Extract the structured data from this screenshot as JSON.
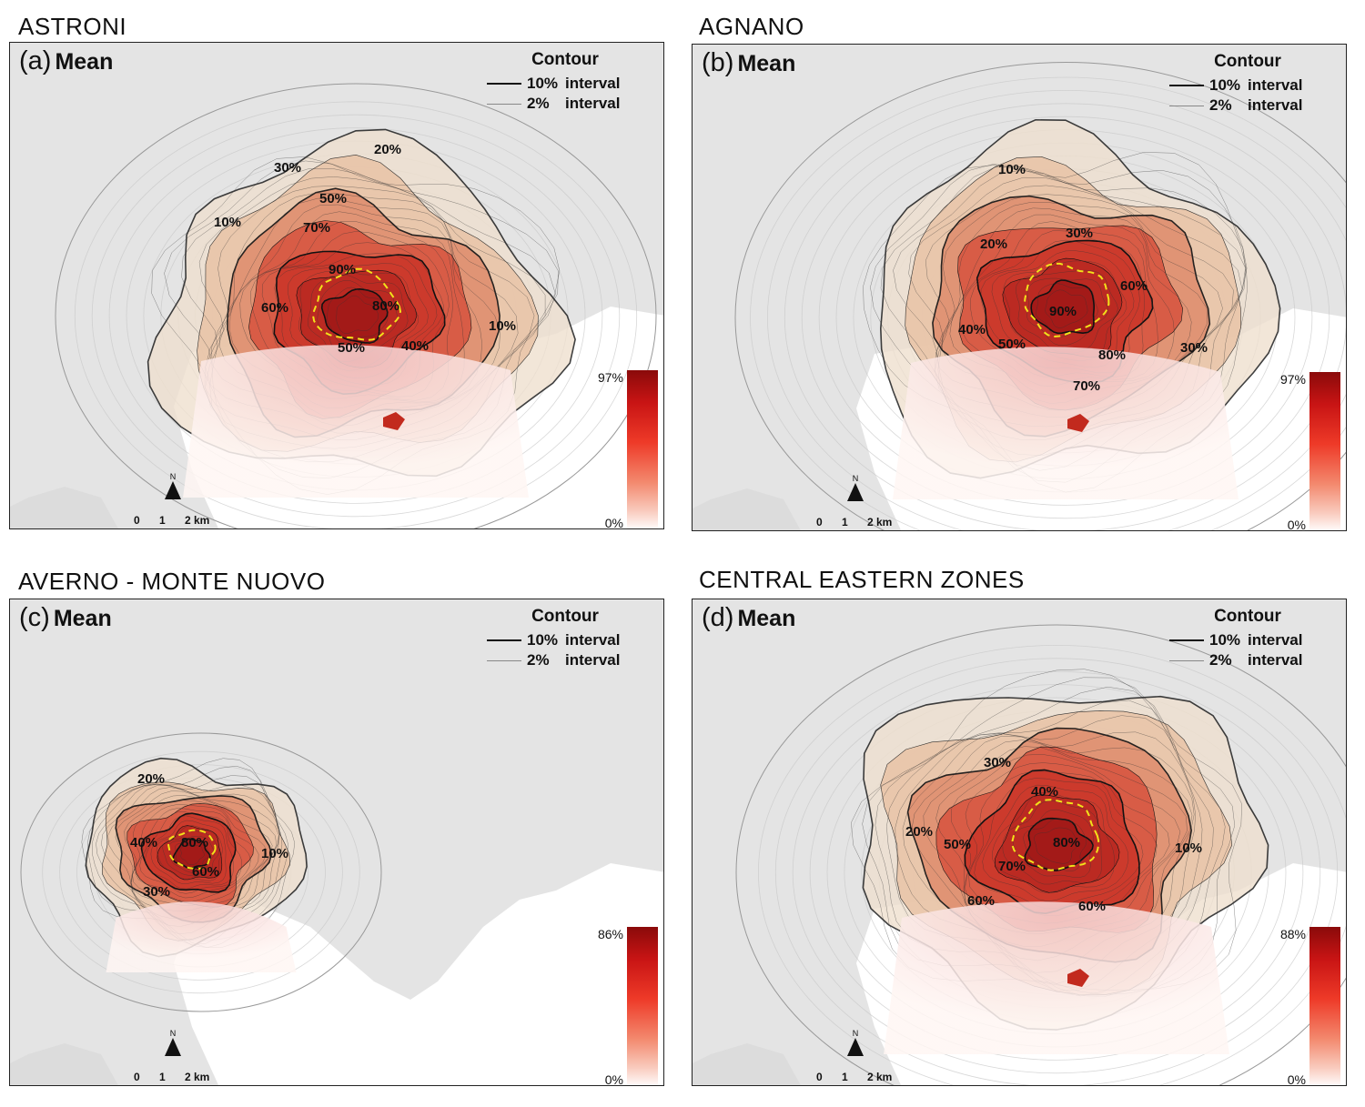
{
  "panels": [
    {
      "section_title": "ASTRONI",
      "label": "(a)",
      "stat": "Mean",
      "legend": {
        "title": "Contour",
        "major_pct": "10%",
        "major_text": "interval",
        "minor_pct": "2%",
        "minor_text": "interval"
      },
      "colorbar": {
        "max": "97%",
        "min": "0%",
        "max_value": 97
      },
      "contour_labels": [
        "20%",
        "30%",
        "50%",
        "10%",
        "70%",
        "90%",
        "60%",
        "80%",
        "50%",
        "40%",
        "10%"
      ],
      "scale": {
        "t0": "0",
        "t1": "1",
        "t2": "2 km"
      },
      "north": "N"
    },
    {
      "section_title": "AGNANO",
      "label": "(b)",
      "stat": "Mean",
      "legend": {
        "title": "Contour",
        "major_pct": "10%",
        "major_text": "interval",
        "minor_pct": "2%",
        "minor_text": "interval"
      },
      "colorbar": {
        "max": "97%",
        "min": "0%",
        "max_value": 97
      },
      "contour_labels": [
        "10%",
        "20%",
        "30%",
        "60%",
        "90%",
        "40%",
        "50%",
        "80%",
        "30%",
        "70%"
      ],
      "scale": {
        "t0": "0",
        "t1": "1",
        "t2": "2 km"
      },
      "north": "N"
    },
    {
      "section_title": "AVERNO - MONTE NUOVO",
      "label": "(c)",
      "stat": "Mean",
      "legend": {
        "title": "Contour",
        "major_pct": "10%",
        "major_text": "interval",
        "minor_pct": "2%",
        "minor_text": "interval"
      },
      "colorbar": {
        "max": "86%",
        "min": "0%",
        "max_value": 86
      },
      "contour_labels": [
        "20%",
        "40%",
        "80%",
        "10%",
        "60%",
        "30%"
      ],
      "scale": {
        "t0": "0",
        "t1": "1",
        "t2": "2 km"
      },
      "north": "N"
    },
    {
      "section_title": "CENTRAL EASTERN ZONES",
      "label": "(d)",
      "stat": "Mean",
      "legend": {
        "title": "Contour",
        "major_pct": "10%",
        "major_text": "interval",
        "minor_pct": "2%",
        "minor_text": "interval"
      },
      "colorbar": {
        "max": "88%",
        "min": "0%",
        "max_value": 88
      },
      "contour_labels": [
        "30%",
        "40%",
        "20%",
        "50%",
        "80%",
        "10%",
        "70%",
        "60%",
        "60%"
      ],
      "scale": {
        "t0": "0",
        "t1": "1",
        "t2": "2 km"
      },
      "north": "N"
    }
  ]
}
